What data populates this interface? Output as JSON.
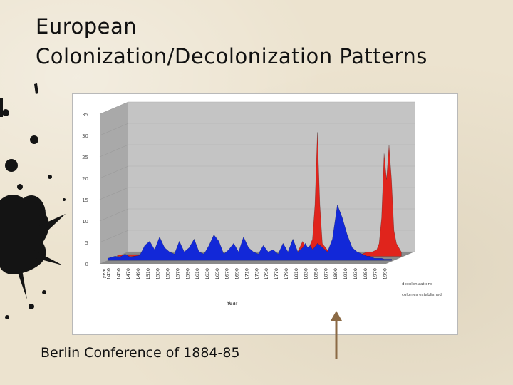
{
  "slide": {
    "title_line1": "European",
    "title_line2": "Colonization/Decolonization Patterns",
    "caption": "Berlin Conference of 1884-85"
  },
  "colors": {
    "background": "#ece3cf",
    "decolonizations": "#e0241c",
    "colonies_established": "#1228d8",
    "wall": "#c4c4c4",
    "floor": "#8a8a8a",
    "arrow": "#8b6a45"
  },
  "chart_data": {
    "type": "area",
    "title": "",
    "xlabel": "Year",
    "ylabel": "",
    "ylim": [
      0,
      35
    ],
    "yticks": [
      0,
      5,
      10,
      15,
      20,
      25,
      30,
      35
    ],
    "x_tick_labels": [
      "year",
      "1430",
      "1450",
      "1470",
      "1490",
      "1510",
      "1530",
      "1550",
      "1570",
      "1590",
      "1610",
      "1630",
      "1650",
      "1670",
      "1690",
      "1710",
      "1730",
      "1750",
      "1770",
      "1790",
      "1810",
      "1830",
      "1850",
      "1870",
      "1890",
      "1910",
      "1930",
      "1950",
      "1970",
      "1990"
    ],
    "grid": true,
    "legend_position": "right",
    "x": [
      1415,
      1430,
      1440,
      1450,
      1460,
      1470,
      1480,
      1490,
      1500,
      1510,
      1520,
      1530,
      1540,
      1550,
      1560,
      1570,
      1580,
      1590,
      1600,
      1610,
      1620,
      1630,
      1640,
      1650,
      1660,
      1670,
      1680,
      1690,
      1700,
      1710,
      1720,
      1730,
      1740,
      1750,
      1760,
      1770,
      1780,
      1790,
      1800,
      1810,
      1815,
      1820,
      1825,
      1830,
      1840,
      1850,
      1860,
      1870,
      1880,
      1890,
      1900,
      1910,
      1920,
      1930,
      1940,
      1945,
      1950,
      1955,
      1960,
      1965,
      1970,
      1975,
      1980,
      1990
    ],
    "series": [
      {
        "name": "decolonizations",
        "values": [
          0.3,
          0.4,
          0.4,
          0.4,
          0.4,
          0.3,
          0.3,
          0.3,
          0.3,
          0.3,
          0.3,
          0.3,
          0.3,
          0.3,
          0.3,
          0.3,
          0.3,
          0.3,
          0.3,
          0.3,
          0.3,
          0.3,
          0.3,
          0.3,
          0.3,
          0.3,
          0.3,
          0.3,
          0.3,
          0.3,
          0.3,
          0.3,
          0.3,
          0.3,
          0.3,
          0.5,
          1.0,
          3.5,
          1.2,
          4.0,
          12.0,
          29.0,
          12.0,
          3.0,
          1.5,
          1.0,
          0.8,
          0.8,
          0.5,
          0.5,
          0.5,
          0.5,
          1.0,
          1.0,
          1.5,
          3.0,
          9.0,
          24.0,
          18.0,
          26.0,
          18.0,
          6.0,
          3.0,
          1.0
        ]
      },
      {
        "name": "colonies established",
        "values": [
          0.5,
          1.0,
          0.8,
          1.5,
          0.8,
          1.0,
          1.2,
          3.5,
          4.5,
          2.5,
          5.5,
          3.0,
          2.0,
          1.5,
          4.5,
          2.0,
          3.0,
          5.0,
          2.0,
          1.5,
          3.5,
          6.0,
          4.5,
          1.5,
          2.5,
          4.0,
          2.0,
          5.5,
          3.0,
          2.0,
          1.5,
          3.5,
          2.0,
          2.5,
          1.5,
          4.0,
          2.0,
          5.0,
          2.0,
          3.0,
          4.0,
          3.0,
          3.5,
          2.5,
          4.0,
          3.0,
          2.0,
          5.0,
          13.0,
          10.0,
          6.0,
          3.0,
          2.0,
          1.5,
          1.0,
          1.0,
          0.8,
          0.5,
          0.5,
          0.5,
          0.5,
          0.3,
          0.3,
          0.3
        ]
      }
    ]
  }
}
